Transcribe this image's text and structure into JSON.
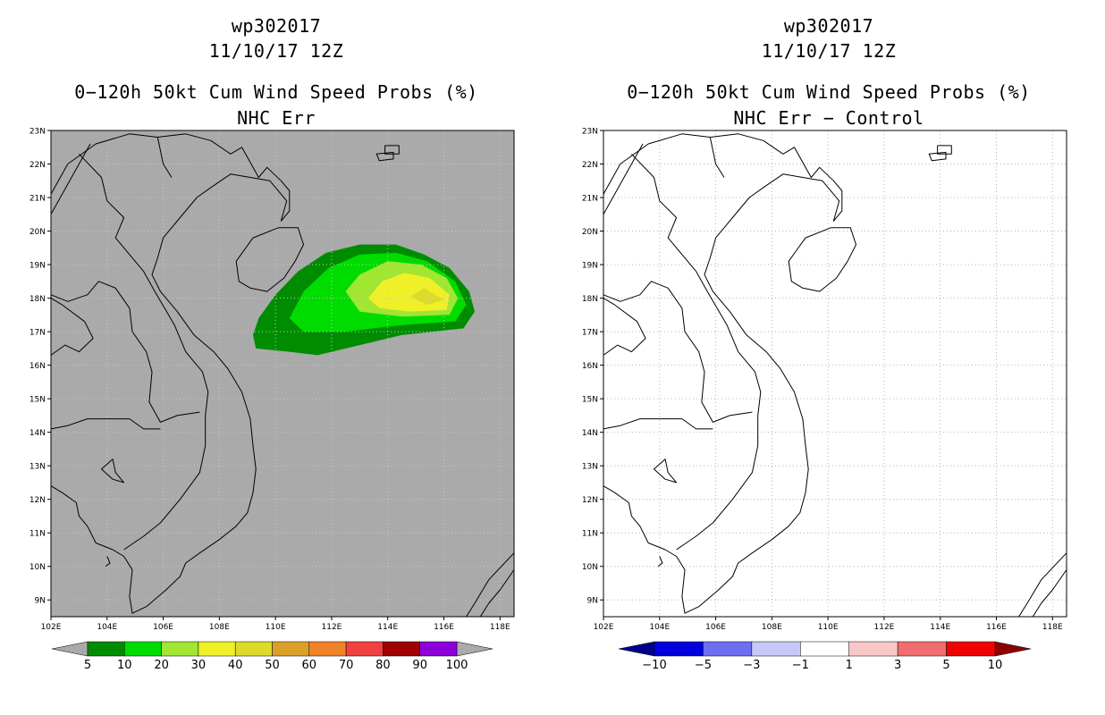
{
  "panels": [
    {
      "title1": "wp302017",
      "title2": "11/10/17 12Z",
      "title3": "0−120h 50kt Cum Wind Speed Probs (%)",
      "title4": "NHC Err",
      "background_color": "#aaaaaa",
      "colorbar": {
        "colors": [
          "#008c00",
          "#00dc00",
          "#a0e632",
          "#f0f028",
          "#dcdc28",
          "#dca028",
          "#f08228",
          "#f04040",
          "#a00000",
          "#8c00dc"
        ],
        "labels": [
          "5",
          "10",
          "20",
          "30",
          "40",
          "50",
          "60",
          "70",
          "80",
          "90",
          "100"
        ],
        "left_arrow_color": "#aaaaaa",
        "right_arrow_color": "#aaaaaa"
      }
    },
    {
      "title1": "wp302017",
      "title2": "11/10/17 12Z",
      "title3": "0−120h 50kt Cum Wind Speed Probs (%)",
      "title4": "NHC Err − Control",
      "background_color": "#ffffff",
      "colorbar": {
        "colors": [
          "#0000dc",
          "#6e6ef0",
          "#c8c8f8",
          "#ffffff",
          "#f8c8c8",
          "#f06e6e",
          "#f00000"
        ],
        "labels": [
          "−10",
          "−5",
          "−3",
          "−1",
          "1",
          "3",
          "5",
          "10"
        ],
        "left_arrow_color": "#00008c",
        "right_arrow_color": "#8c0000"
      }
    }
  ],
  "map": {
    "lat_labels": [
      "23N",
      "22N",
      "21N",
      "20N",
      "19N",
      "18N",
      "17N",
      "16N",
      "15N",
      "14N",
      "13N",
      "12N",
      "11N",
      "10N",
      "9N"
    ],
    "lon_labels": [
      "102E",
      "104E",
      "106E",
      "108E",
      "110E",
      "112E",
      "114E",
      "116E",
      "118E"
    ]
  },
  "chart_data": [
    {
      "type": "heatmap",
      "title": "0−120h 50kt Cum Wind Speed Probs (%) — NHC Err",
      "units": "%",
      "lon_range": [
        102,
        118.5
      ],
      "lat_range": [
        8.5,
        23
      ],
      "probability_contours": [
        {
          "level": 5,
          "polygon": [
            [
              109.2,
              16.9
            ],
            [
              109.4,
              17.4
            ],
            [
              110,
              18.1
            ],
            [
              110.8,
              18.8
            ],
            [
              111.8,
              19.35
            ],
            [
              113,
              19.6
            ],
            [
              114.3,
              19.6
            ],
            [
              115.3,
              19.3
            ],
            [
              116.2,
              18.9
            ],
            [
              116.9,
              18.2
            ],
            [
              117.1,
              17.6
            ],
            [
              116.7,
              17.1
            ],
            [
              114.5,
              16.9
            ],
            [
              112.5,
              16.5
            ],
            [
              111.5,
              16.3
            ],
            [
              110.5,
              16.4
            ],
            [
              109.3,
              16.5
            ]
          ]
        },
        {
          "level": 10,
          "polygon": [
            [
              110.5,
              17.4
            ],
            [
              111,
              18.2
            ],
            [
              111.9,
              18.9
            ],
            [
              113,
              19.3
            ],
            [
              114.3,
              19.35
            ],
            [
              115.4,
              19.1
            ],
            [
              116.4,
              18.5
            ],
            [
              116.8,
              17.8
            ],
            [
              116.4,
              17.3
            ],
            [
              114.5,
              17.2
            ],
            [
              112.5,
              17
            ],
            [
              111,
              17
            ]
          ]
        },
        {
          "level": 20,
          "polygon": [
            [
              112.5,
              18.2
            ],
            [
              113,
              18.7
            ],
            [
              114,
              19.1
            ],
            [
              115.2,
              19
            ],
            [
              116.1,
              18.6
            ],
            [
              116.5,
              18
            ],
            [
              116.2,
              17.5
            ],
            [
              114.5,
              17.45
            ],
            [
              113,
              17.6
            ]
          ]
        },
        {
          "level": 30,
          "polygon": [
            [
              113.3,
              18
            ],
            [
              113.8,
              18.5
            ],
            [
              114.6,
              18.75
            ],
            [
              115.5,
              18.6
            ],
            [
              116.2,
              18.1
            ],
            [
              116.1,
              17.65
            ],
            [
              114.8,
              17.6
            ],
            [
              113.7,
              17.7
            ]
          ]
        },
        {
          "level": 40,
          "polygon": [
            [
              114.8,
              18.05
            ],
            [
              115.3,
              18.3
            ],
            [
              116,
              17.95
            ],
            [
              115.4,
              17.8
            ]
          ]
        }
      ],
      "colorbar": {
        "levels": [
          5,
          10,
          20,
          30,
          40,
          50,
          60,
          70,
          80,
          90,
          100
        ]
      }
    },
    {
      "type": "heatmap",
      "title": "0−120h 50kt Cum Wind Speed Probs (%) — NHC Err − Control",
      "units": "%",
      "lon_range": [
        102,
        118.5
      ],
      "lat_range": [
        8.5,
        23
      ],
      "difference_field": "within −1 to 1 everywhere (blank)",
      "colorbar": {
        "levels": [
          -10,
          -5,
          -3,
          -1,
          1,
          3,
          5,
          10
        ]
      }
    }
  ]
}
